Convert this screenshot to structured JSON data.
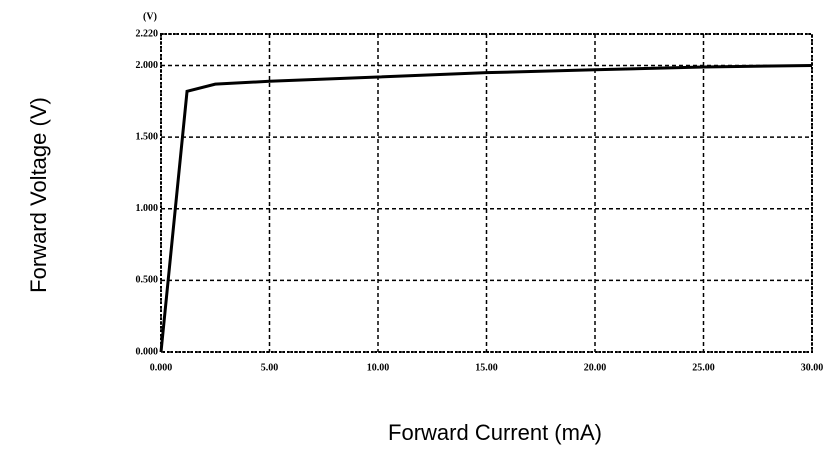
{
  "chart_data": {
    "type": "line",
    "x_label": "Forward Current (mA)",
    "y_label": "Forward Voltage (V)",
    "y_unit": "(V)",
    "x": [
      0,
      1.2,
      2.5,
      5,
      10,
      15,
      20,
      25,
      30
    ],
    "series": [
      {
        "name": "Forward Voltage",
        "color": "#000000",
        "values": [
          0,
          1.82,
          1.87,
          1.89,
          1.92,
          1.95,
          1.97,
          1.99,
          2.0
        ]
      }
    ],
    "xlim": [
      0,
      30
    ],
    "ylim": [
      0,
      2.22
    ],
    "xticks": [
      {
        "value": 0,
        "label": "0.000"
      },
      {
        "value": 5,
        "label": "5.00"
      },
      {
        "value": 10,
        "label": "10.00"
      },
      {
        "value": 15,
        "label": "15.00"
      },
      {
        "value": 20,
        "label": "20.00"
      },
      {
        "value": 25,
        "label": "25.00"
      },
      {
        "value": 30,
        "label": "30.00"
      }
    ],
    "yticks": [
      {
        "value": 0,
        "label": "0.000"
      },
      {
        "value": 0.5,
        "label": "0.500"
      },
      {
        "value": 1,
        "label": "1.000"
      },
      {
        "value": 1.5,
        "label": "1.500"
      },
      {
        "value": 2,
        "label": "2.000"
      },
      {
        "value": 2.22,
        "label": "2.220"
      }
    ],
    "grid": true
  }
}
